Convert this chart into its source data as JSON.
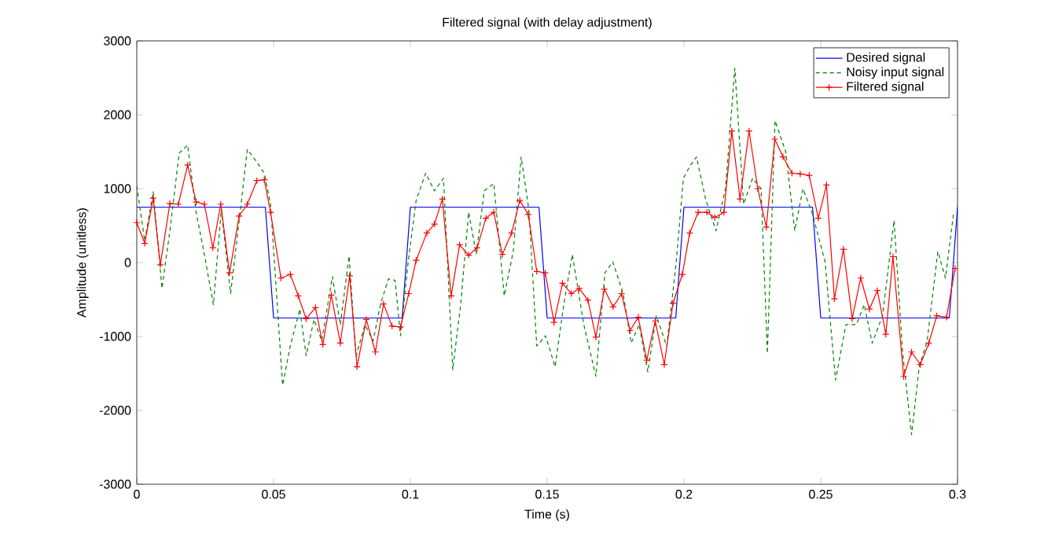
{
  "chart_data": {
    "type": "line",
    "title": "Filtered signal (with delay adjustment)",
    "xlabel": "Time (s)",
    "ylabel": "Amplitude (unitless)",
    "xlim": [
      0,
      0.3
    ],
    "ylim": [
      -3000,
      3000
    ],
    "xticks": [
      0,
      0.05,
      0.1,
      0.15,
      0.2,
      0.25,
      0.3
    ],
    "yticks": [
      -3000,
      -2000,
      -1000,
      0,
      1000,
      2000,
      3000
    ],
    "legend": "top right",
    "series": [
      {
        "name": "Desired signal",
        "color": "#0000ff",
        "line_style": "solid",
        "x": [
          0,
          0.047,
          0.05,
          0.097,
          0.1,
          0.147,
          0.15,
          0.197,
          0.2,
          0.247,
          0.25,
          0.297,
          0.3
        ],
        "values": [
          750,
          750,
          -750,
          -750,
          750,
          750,
          -750,
          -750,
          750,
          750,
          -750,
          -750,
          750
        ]
      },
      {
        "name": "Noisy input signal",
        "color": "#008000",
        "line_style": "dashed",
        "x": [
          0,
          0.0029,
          0.006,
          0.0092,
          0.0121,
          0.0155,
          0.0186,
          0.0217,
          0.0245,
          0.028,
          0.0309,
          0.0343,
          0.0379,
          0.0404,
          0.0433,
          0.0466,
          0.0489,
          0.0533,
          0.0561,
          0.0596,
          0.0619,
          0.0648,
          0.0676,
          0.0715,
          0.0744,
          0.0776,
          0.0801,
          0.0834,
          0.0864,
          0.0891,
          0.092,
          0.0944,
          0.0964,
          0.0992,
          0.1021,
          0.1056,
          0.1088,
          0.1121,
          0.1155,
          0.1184,
          0.1213,
          0.1241,
          0.127,
          0.1305,
          0.1343,
          0.1376,
          0.1405,
          0.1433,
          0.1462,
          0.1494,
          0.1529,
          0.1561,
          0.1592,
          0.1634,
          0.1678,
          0.1711,
          0.174,
          0.1778,
          0.1807,
          0.1836,
          0.1868,
          0.1899,
          0.1937,
          0.197,
          0.1998,
          0.2021,
          0.2046,
          0.2079,
          0.2117,
          0.2152,
          0.2186,
          0.2218,
          0.2251,
          0.2282,
          0.2305,
          0.2333,
          0.2372,
          0.2405,
          0.2435,
          0.2468,
          0.2516,
          0.2554,
          0.2592,
          0.263,
          0.2659,
          0.2688,
          0.2726,
          0.2768,
          0.2799,
          0.2832,
          0.286,
          0.2889,
          0.2928,
          0.2956,
          0.2985
        ],
        "values": [
          1040,
          290,
          960,
          -350,
          430,
          1480,
          1590,
          680,
          150,
          -570,
          720,
          -420,
          720,
          1530,
          1390,
          1210,
          790,
          -1660,
          -1130,
          -630,
          -1260,
          -770,
          -1060,
          -190,
          -840,
          90,
          -1270,
          -840,
          -1060,
          -560,
          -220,
          -240,
          -990,
          10,
          840,
          1210,
          970,
          1140,
          -1450,
          -560,
          680,
          110,
          970,
          1070,
          -450,
          150,
          1430,
          720,
          -1130,
          -990,
          -1410,
          -560,
          110,
          -840,
          -1540,
          -140,
          10,
          -420,
          -1090,
          -840,
          -1480,
          -720,
          -1130,
          -60,
          1140,
          1300,
          1430,
          860,
          430,
          1000,
          2630,
          790,
          1140,
          1000,
          -1230,
          1920,
          1500,
          430,
          1000,
          680,
          10,
          -1590,
          -840,
          -840,
          -570,
          -1090,
          -720,
          570,
          -1200,
          -2330,
          -1410,
          -1060,
          150,
          -210,
          650
        ]
      },
      {
        "name": "Filtered signal",
        "color": "#ff0000",
        "line_style": "solid",
        "marker": "cross",
        "x": [
          0,
          0.0029,
          0.006,
          0.0086,
          0.0121,
          0.0152,
          0.0186,
          0.0217,
          0.0247,
          0.0278,
          0.0307,
          0.0339,
          0.0374,
          0.0404,
          0.0439,
          0.0466,
          0.0489,
          0.0527,
          0.0561,
          0.059,
          0.0619,
          0.0653,
          0.068,
          0.0711,
          0.0744,
          0.0778,
          0.0805,
          0.0839,
          0.0872,
          0.0902,
          0.0933,
          0.0964,
          0.0994,
          0.1021,
          0.106,
          0.1088,
          0.1117,
          0.1149,
          0.118,
          0.1213,
          0.1244,
          0.1276,
          0.1305,
          0.1336,
          0.137,
          0.14,
          0.1431,
          0.1462,
          0.1493,
          0.1525,
          0.1556,
          0.1588,
          0.1617,
          0.1649,
          0.1678,
          0.1709,
          0.1741,
          0.1772,
          0.1803,
          0.1833,
          0.1864,
          0.1895,
          0.1928,
          0.196,
          0.1994,
          0.2021,
          0.2052,
          0.2084,
          0.2113,
          0.2146,
          0.2175,
          0.2205,
          0.2238,
          0.227,
          0.2301,
          0.2332,
          0.2362,
          0.2395,
          0.2425,
          0.2458,
          0.2491,
          0.2521,
          0.255,
          0.2583,
          0.2615,
          0.2646,
          0.2678,
          0.2707,
          0.2738,
          0.2764,
          0.2803,
          0.2832,
          0.2864,
          0.2895,
          0.2924,
          0.296,
          0.2991
        ],
        "values": [
          540,
          260,
          870,
          -30,
          800,
          790,
          1320,
          820,
          790,
          200,
          790,
          -140,
          630,
          790,
          1110,
          1120,
          680,
          -210,
          -160,
          -450,
          -760,
          -610,
          -1110,
          -440,
          -1090,
          -180,
          -1410,
          -770,
          -1210,
          -560,
          -860,
          -870,
          -420,
          30,
          400,
          520,
          860,
          -450,
          240,
          100,
          200,
          600,
          680,
          110,
          400,
          840,
          650,
          -120,
          -140,
          -810,
          -280,
          -420,
          -350,
          -510,
          -1010,
          -360,
          -600,
          -420,
          -920,
          -740,
          -1320,
          -790,
          -1380,
          -550,
          -160,
          400,
          680,
          680,
          610,
          680,
          1780,
          860,
          1780,
          1000,
          480,
          1670,
          1430,
          1210,
          1200,
          1180,
          600,
          1050,
          -490,
          180,
          -760,
          -210,
          -630,
          -380,
          -970,
          80,
          -1540,
          -1210,
          -1380,
          -1090,
          -720,
          -740,
          -80
        ]
      }
    ]
  }
}
